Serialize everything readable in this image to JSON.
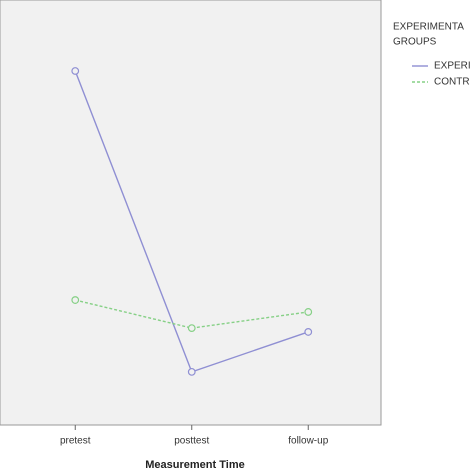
{
  "chart_data": {
    "type": "line",
    "x_label": "Measurement Time",
    "legend_title": [
      "EXPERIMENTA",
      "GROUPS"
    ],
    "categories": [
      "pretest",
      "posttest",
      "follow-up"
    ],
    "series": [
      {
        "name": "EXPERI",
        "color": "#8f8fd3",
        "dashed": false,
        "values": [
          83.3,
          12.5,
          21.9
        ]
      },
      {
        "name": "CONTR",
        "color": "#86d086",
        "dashed": true,
        "values": [
          29.4,
          22.8,
          26.6
        ]
      }
    ],
    "ylim": [
      0,
      100
    ],
    "legend": "right"
  }
}
